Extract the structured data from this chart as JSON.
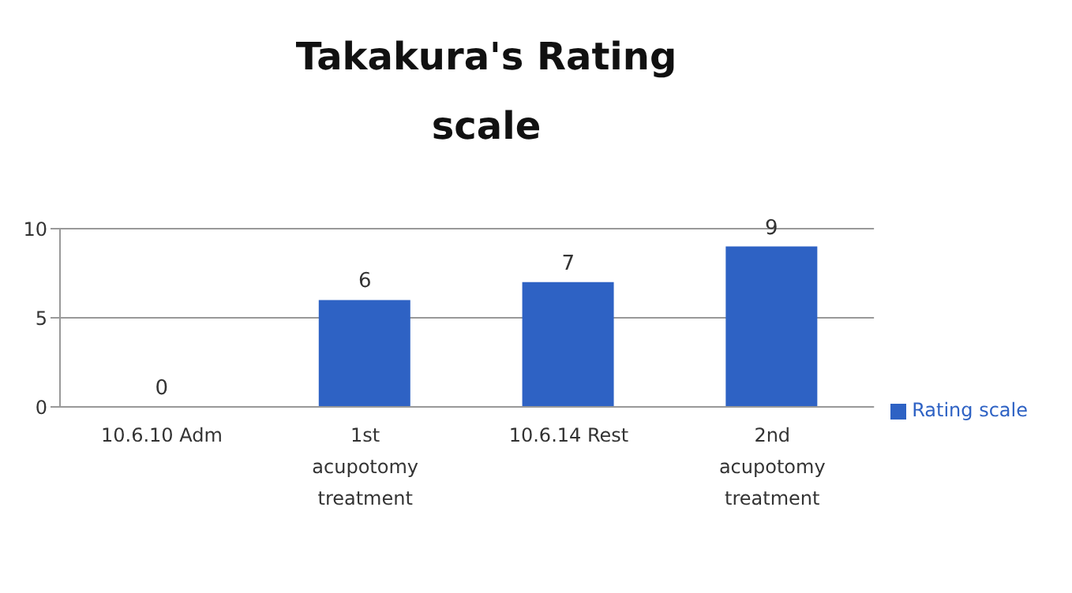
{
  "chart_data": {
    "type": "bar",
    "title": "Takakura's Rating scale",
    "categories": [
      "10.6.10 Adm",
      "1st acupotomy treatment",
      "10.6.14 Rest",
      "2nd acupotomy treatment"
    ],
    "series": [
      {
        "name": "Rating scale",
        "color": "#2e62c4",
        "values": [
          0,
          6,
          7,
          9
        ]
      }
    ],
    "ylim": [
      0,
      10
    ],
    "yticks": [
      0,
      5,
      10
    ],
    "grid": "y",
    "legend": "right",
    "data_labels": true
  }
}
